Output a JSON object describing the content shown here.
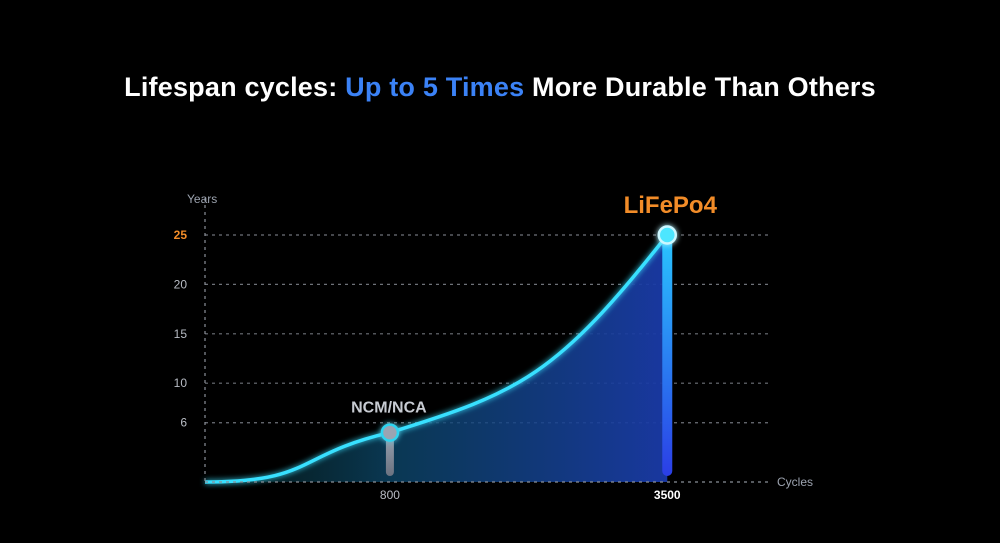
{
  "headline": {
    "prefix": "Lifespan cycles: ",
    "highlight": "Up to 5 Times",
    "suffix": " More Durable Than Others"
  },
  "colors": {
    "background": "#000000",
    "highlight_text": "#3b82f6",
    "lifepo4_label": "#f28c28",
    "curve": "#38e0ff",
    "ncm_marker": "#9aa4b2"
  },
  "chart_data": {
    "type": "area",
    "xlabel": "Cycles",
    "ylabel": "Years",
    "x_ticks": [
      {
        "value": 800,
        "label": "800",
        "emphasis": false
      },
      {
        "value": 3500,
        "label": "3500",
        "emphasis": true
      }
    ],
    "y_ticks": [
      {
        "value": 6,
        "label": "6",
        "emphasis": false
      },
      {
        "value": 10,
        "label": "10",
        "emphasis": false
      },
      {
        "value": 15,
        "label": "15",
        "emphasis": false
      },
      {
        "value": 20,
        "label": "20",
        "emphasis": false
      },
      {
        "value": 25,
        "label": "25",
        "emphasis": true
      }
    ],
    "xlim": [
      -1000,
      4500
    ],
    "ylim": [
      0,
      25
    ],
    "grid": true,
    "series": [
      {
        "x": [
          -1000,
          800,
          3500
        ],
        "y": [
          0,
          5,
          25
        ]
      }
    ],
    "markers": [
      {
        "label": "NCM/NCA",
        "x": 800,
        "y": 5
      },
      {
        "label": "LiFePo4",
        "x": 3500,
        "y": 25
      }
    ]
  }
}
